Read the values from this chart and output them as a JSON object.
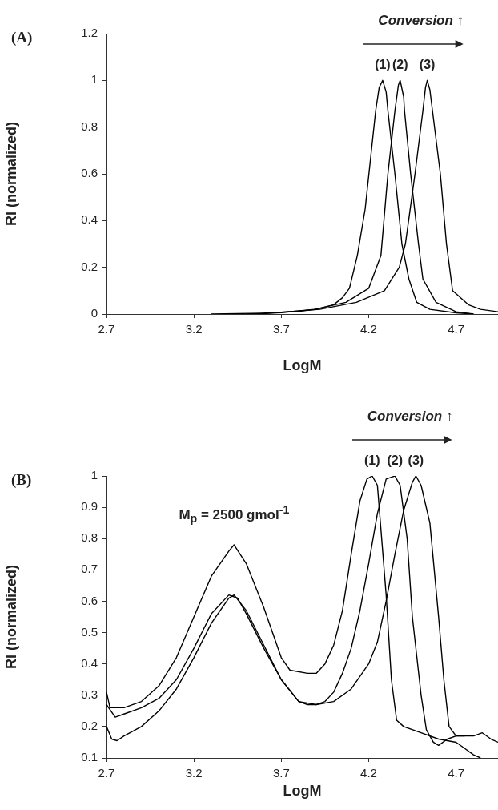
{
  "chart_data": [
    {
      "type": "line",
      "title": "(A)",
      "xlabel": "LogM",
      "ylabel": "RI (normalized)",
      "annotations": [
        "Conversion ↑"
      ],
      "xlim": [
        2.7,
        4.94
      ],
      "xticks": [
        2.7,
        3.2,
        3.7,
        4.2,
        4.7
      ],
      "ylim": [
        0,
        1.2
      ],
      "yticks": [
        0,
        0.2,
        0.4,
        0.6,
        0.8,
        1,
        1.2
      ],
      "grid": false,
      "legend": false,
      "marker": "none",
      "series": [
        {
          "name": "(1)",
          "color": "#000000",
          "x": [
            3.3,
            3.6,
            3.8,
            3.9,
            4.0,
            4.05,
            4.09,
            4.135,
            4.18,
            4.21,
            4.24,
            4.26,
            4.28,
            4.3,
            4.31,
            4.35,
            4.39,
            4.43,
            4.475,
            4.55,
            4.7,
            4.8
          ],
          "values": [
            0,
            0.004,
            0.012,
            0.02,
            0.04,
            0.07,
            0.11,
            0.25,
            0.45,
            0.66,
            0.87,
            0.97,
            1.0,
            0.95,
            0.87,
            0.6,
            0.3,
            0.15,
            0.05,
            0.02,
            0.005,
            0
          ]
        },
        {
          "name": "(2)",
          "color": "#000000",
          "x": [
            3.5,
            3.7,
            3.89,
            4.07,
            4.2,
            4.27,
            4.31,
            4.35,
            4.37,
            4.38,
            4.4,
            4.405,
            4.44,
            4.485,
            4.51,
            4.585,
            4.7,
            4.8
          ],
          "values": [
            0,
            0.006,
            0.02,
            0.05,
            0.11,
            0.25,
            0.6,
            0.87,
            0.98,
            1.0,
            0.93,
            0.87,
            0.6,
            0.3,
            0.15,
            0.05,
            0.01,
            0
          ]
        },
        {
          "name": "(3)",
          "color": "#000000",
          "x": [
            3.56,
            3.92,
            4.13,
            4.29,
            4.375,
            4.41,
            4.465,
            4.51,
            4.525,
            4.535,
            4.55,
            4.565,
            4.61,
            4.645,
            4.68,
            4.77,
            4.84,
            4.94
          ],
          "values": [
            0,
            0.02,
            0.05,
            0.1,
            0.2,
            0.3,
            0.6,
            0.87,
            0.97,
            1.0,
            0.96,
            0.87,
            0.6,
            0.3,
            0.1,
            0.04,
            0.02,
            0.01
          ]
        }
      ]
    },
    {
      "type": "line",
      "title": "(B)",
      "xlabel": "LogM",
      "ylabel": "RI (normalized)",
      "annotations": [
        "Conversion ↑",
        {
          "text": "M$_{p}$ = 2500 gmol$^{-1}$",
          "x": 3.43,
          "y": 0.78
        }
      ],
      "xlim": [
        2.7,
        4.94
      ],
      "xticks": [
        2.7,
        3.2,
        3.7,
        4.2,
        4.7
      ],
      "ylim": [
        0.1,
        1
      ],
      "yticks": [
        0.1,
        0.2,
        0.3,
        0.4,
        0.5,
        0.6,
        0.7,
        0.8,
        0.9,
        1
      ],
      "grid": false,
      "legend": false,
      "marker": "none",
      "series": [
        {
          "name": "(1)",
          "color": "#000000",
          "x": [
            2.7,
            2.72,
            2.8,
            2.9,
            3.0,
            3.1,
            3.2,
            3.3,
            3.4,
            3.43,
            3.5,
            3.6,
            3.7,
            3.75,
            3.85,
            3.9,
            3.95,
            4.0,
            4.05,
            4.1,
            4.15,
            4.19,
            4.22,
            4.25,
            4.3,
            4.33,
            4.36,
            4.4,
            4.5,
            4.6,
            4.7,
            4.75,
            4.8,
            4.84
          ],
          "values": [
            0.31,
            0.26,
            0.26,
            0.28,
            0.33,
            0.42,
            0.55,
            0.68,
            0.76,
            0.78,
            0.72,
            0.58,
            0.42,
            0.38,
            0.37,
            0.37,
            0.4,
            0.46,
            0.57,
            0.75,
            0.92,
            0.99,
            1.0,
            0.97,
            0.62,
            0.35,
            0.22,
            0.2,
            0.18,
            0.16,
            0.15,
            0.13,
            0.11,
            0.1
          ]
        },
        {
          "name": "(2)",
          "color": "#000000",
          "x": [
            2.7,
            2.75,
            2.8,
            2.9,
            3.0,
            3.1,
            3.2,
            3.3,
            3.4,
            3.45,
            3.5,
            3.6,
            3.7,
            3.8,
            3.85,
            3.9,
            3.95,
            4.0,
            4.05,
            4.1,
            4.15,
            4.2,
            4.25,
            4.3,
            4.35,
            4.38,
            4.42,
            4.45,
            4.5,
            4.53,
            4.57,
            4.6,
            4.65,
            4.7,
            4.75
          ],
          "values": [
            0.27,
            0.23,
            0.24,
            0.26,
            0.29,
            0.35,
            0.45,
            0.56,
            0.62,
            0.61,
            0.56,
            0.45,
            0.35,
            0.28,
            0.27,
            0.27,
            0.28,
            0.31,
            0.37,
            0.45,
            0.57,
            0.72,
            0.88,
            0.99,
            1.0,
            0.97,
            0.8,
            0.55,
            0.3,
            0.19,
            0.15,
            0.14,
            0.16,
            0.17,
            0.17
          ]
        },
        {
          "name": "(3)",
          "color": "#000000",
          "x": [
            2.7,
            2.73,
            2.76,
            2.8,
            2.9,
            3.0,
            3.1,
            3.2,
            3.3,
            3.4,
            3.43,
            3.5,
            3.6,
            3.7,
            3.8,
            3.9,
            4.0,
            4.1,
            4.2,
            4.25,
            4.3,
            4.35,
            4.4,
            4.45,
            4.47,
            4.5,
            4.55,
            4.6,
            4.63,
            4.66,
            4.7,
            4.8,
            4.85,
            4.9,
            4.94
          ],
          "values": [
            0.2,
            0.16,
            0.155,
            0.17,
            0.2,
            0.25,
            0.32,
            0.42,
            0.53,
            0.61,
            0.62,
            0.57,
            0.46,
            0.35,
            0.28,
            0.27,
            0.28,
            0.32,
            0.4,
            0.47,
            0.6,
            0.75,
            0.89,
            0.98,
            1.0,
            0.97,
            0.85,
            0.55,
            0.35,
            0.2,
            0.17,
            0.17,
            0.18,
            0.16,
            0.15
          ]
        }
      ]
    }
  ]
}
